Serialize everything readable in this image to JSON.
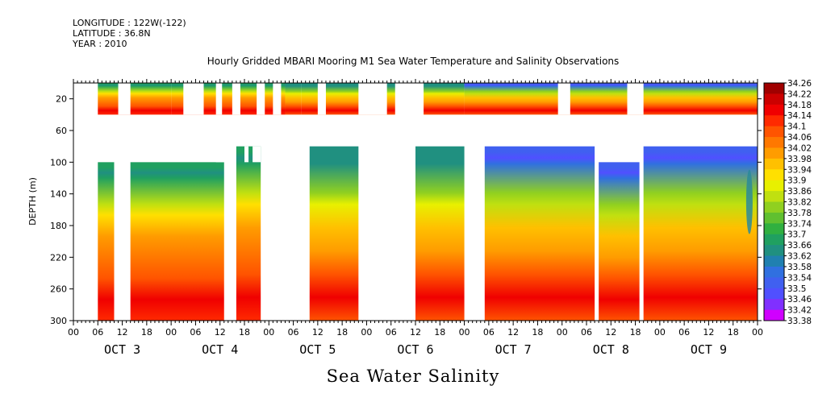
{
  "header": {
    "longitude": "LONGITUDE : 122W(-122)",
    "latitude": "LATITUDE : 36.8N",
    "year": "YEAR : 2010"
  },
  "chart_data": {
    "type": "heatmap",
    "title": "Hourly Gridded MBARI Mooring M1 Sea Water Temperature and Salinity Observations",
    "subtitle": "Sea Water Salinity",
    "xlabel": "",
    "ylabel": "DEPTH (m)",
    "x_unit": "hours since OCT 3 00:00",
    "xlim": [
      0,
      168
    ],
    "ylim": [
      0,
      300
    ],
    "y_ticks": [
      20,
      60,
      100,
      140,
      180,
      220,
      260,
      300
    ],
    "x_tick_labels": [
      "00",
      "06",
      "12",
      "18",
      "00",
      "06",
      "12",
      "18",
      "00",
      "06",
      "12",
      "18",
      "00",
      "06",
      "12",
      "18",
      "00",
      "06",
      "12",
      "18",
      "00",
      "06",
      "12",
      "18",
      "00",
      "06",
      "12",
      "18",
      "00"
    ],
    "day_labels": [
      "OCT  3",
      "OCT  4",
      "OCT  5",
      "OCT  6",
      "OCT  7",
      "OCT  8",
      "OCT  9"
    ],
    "colorbar_levels": [
      "34.26",
      "34.22",
      "34.18",
      "34.14",
      "34.1",
      "34.06",
      "34.02",
      "33.98",
      "33.94",
      "33.9",
      "33.86",
      "33.82",
      "33.78",
      "33.74",
      "33.7",
      "33.66",
      "33.62",
      "33.58",
      "33.54",
      "33.5",
      "33.46",
      "33.42",
      "33.38"
    ],
    "colormap": [
      "#ff00ff",
      "#d000ff",
      "#8030ff",
      "#5050ff",
      "#4060f0",
      "#3070e0",
      "#2080b0",
      "#209080",
      "#20a060",
      "#30b040",
      "#60c030",
      "#90d020",
      "#c0e010",
      "#e8f000",
      "#ffe000",
      "#ffc000",
      "#ff9c00",
      "#ff7800",
      "#ff5400",
      "#ff2a00",
      "#f00000",
      "#cc0000",
      "#a00000"
    ],
    "depth_levels": [
      {
        "depth": 10,
        "values": [
          33.7,
          33.68,
          33.56
        ]
      },
      {
        "depth": 20,
        "values": [
          33.68,
          33.66,
          33.52
        ]
      },
      {
        "depth": 30,
        "values": [
          33.7,
          33.68,
          33.6
        ]
      },
      {
        "depth": 80,
        "values": [
          33.86,
          33.84,
          33.84
        ]
      },
      {
        "depth": 100,
        "values": [
          33.94,
          33.9,
          33.86
        ]
      },
      {
        "depth": 140,
        "values": [
          34.02,
          34.0,
          33.98
        ]
      },
      {
        "depth": 180,
        "values": [
          34.06,
          34.04,
          34.02
        ]
      },
      {
        "depth": 220,
        "values": [
          34.12,
          34.1,
          34.1
        ]
      },
      {
        "depth": 260,
        "values": [
          34.2,
          34.18,
          34.18
        ]
      },
      {
        "depth": 300,
        "values": [
          34.14,
          34.12,
          34.12
        ]
      }
    ],
    "grid": false,
    "legend": "right"
  }
}
